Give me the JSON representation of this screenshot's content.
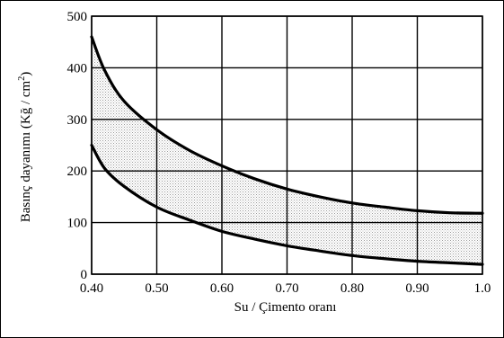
{
  "chart_data": {
    "type": "area",
    "xlabel": "Su / Çimento oranı",
    "ylabel": "Basınç dayanımı (Kğ / cm²)",
    "ylabel_parts": {
      "main": "Basınç dayanımı (Kğ / cm",
      "sup": "2",
      "end": ")"
    },
    "xlim": [
      0.4,
      1.0
    ],
    "ylim": [
      0,
      500
    ],
    "grid": true,
    "x_ticks": [
      "0.40",
      "0.50",
      "0.60",
      "0.70",
      "0.80",
      "0.90",
      "1.0"
    ],
    "x_tick_values": [
      0.4,
      0.5,
      0.6,
      0.7,
      0.8,
      0.9,
      1.0
    ],
    "y_ticks": [
      "0",
      "100",
      "200",
      "300",
      "400",
      "500"
    ],
    "y_tick_values": [
      0,
      100,
      200,
      300,
      400,
      500
    ],
    "series": [
      {
        "x": [
          0.4,
          0.42,
          0.45,
          0.5,
          0.55,
          0.6,
          0.65,
          0.7,
          0.75,
          0.8,
          0.85,
          0.9,
          0.95,
          1.0
        ],
        "values": [
          460,
          395,
          335,
          280,
          240,
          210,
          185,
          165,
          150,
          138,
          130,
          123,
          119,
          118
        ]
      },
      {
        "x": [
          0.4,
          0.42,
          0.45,
          0.5,
          0.55,
          0.6,
          0.65,
          0.7,
          0.75,
          0.8,
          0.85,
          0.9,
          0.95,
          1.0
        ],
        "values": [
          250,
          205,
          170,
          130,
          105,
          83,
          68,
          55,
          45,
          36,
          30,
          25,
          22,
          19
        ]
      }
    ],
    "fill_between_series": true,
    "colors": {
      "line": "#000000",
      "grid": "#000000",
      "fill_dot": "#9a9a9a"
    }
  }
}
